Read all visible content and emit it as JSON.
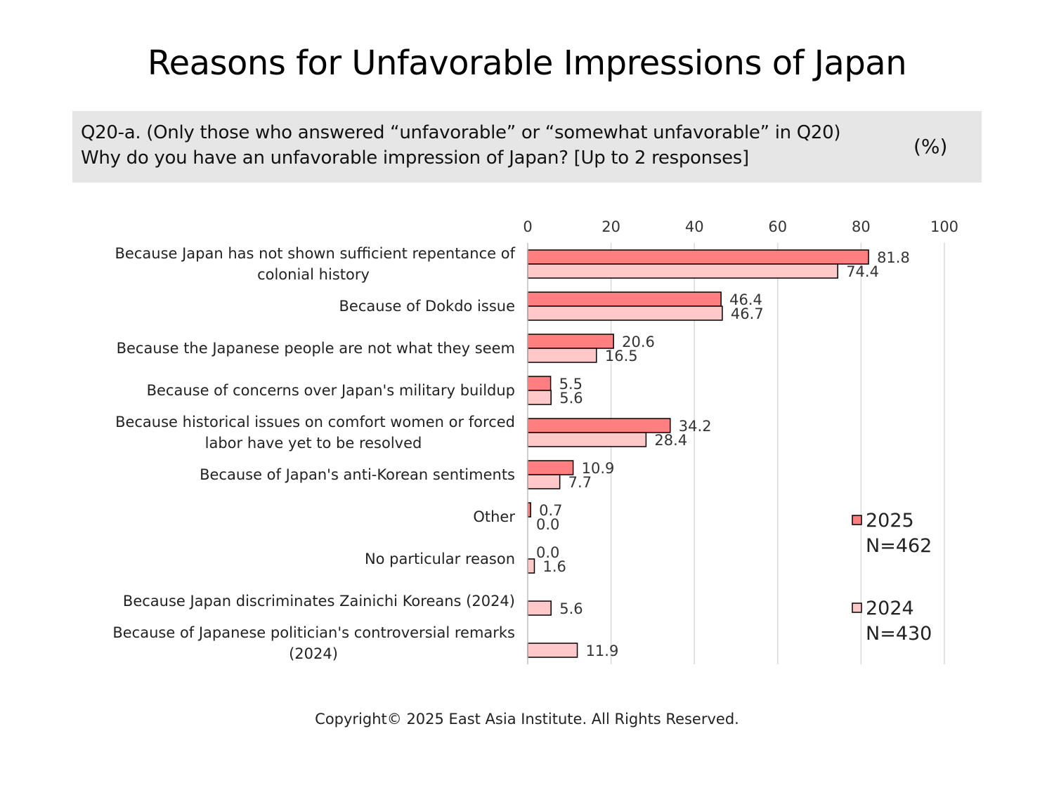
{
  "title": "Reasons for Unfavorable Impressions of Japan",
  "question": {
    "line1": "Q20-a. (Only those who answered “unfavorable” or “somewhat unfavorable” in Q20)",
    "line2": "Why do you have an unfavorable impression of Japan? [Up to 2 responses]",
    "unit": "(%)"
  },
  "copyright": "Copyright© 2025 East Asia Institute. All Rights Reserved.",
  "colors": {
    "series_2025": "#ff7f80",
    "series_2024": "#ffc9ca",
    "bar_outline": "#000000",
    "grid": "#d9d9d9"
  },
  "chart_data": {
    "type": "bar",
    "orientation": "horizontal",
    "xlim": [
      0,
      100
    ],
    "x_ticks": [
      "0",
      "20",
      "40",
      "60",
      "80",
      "100"
    ],
    "x_axis_position": "top",
    "grid": true,
    "legend_position": "right",
    "categories": [
      [
        "Because Japan has not shown sufficient repentance of",
        "colonial history"
      ],
      [
        "Because of Dokdo issue"
      ],
      [
        "Because the Japanese people are not what they seem"
      ],
      [
        "Because of concerns over Japan's military buildup"
      ],
      [
        "Because historical issues on comfort women or forced",
        "labor have yet to be resolved"
      ],
      [
        "Because of Japan's anti-Korean sentiments"
      ],
      [
        "Other"
      ],
      [
        "No particular reason"
      ],
      [
        "Because Japan discriminates Zainichi Koreans (2024)"
      ],
      [
        "Because of Japanese politician's controversial remarks",
        "(2024)"
      ]
    ],
    "series": [
      {
        "name": "2025",
        "sample": "N=462",
        "values": [
          81.8,
          46.4,
          20.6,
          5.5,
          34.2,
          10.9,
          0.7,
          0.0,
          null,
          null
        ],
        "labels": [
          "81.8",
          "46.4",
          "20.6",
          "5.5",
          "34.2",
          "10.9",
          "0.7",
          "0.0",
          null,
          null
        ]
      },
      {
        "name": "2024",
        "sample": "N=430",
        "values": [
          74.4,
          46.7,
          16.5,
          5.6,
          28.4,
          7.7,
          0.0,
          1.6,
          5.6,
          11.9
        ],
        "labels": [
          "74.4",
          "46.7",
          "16.5",
          "5.6",
          "28.4",
          "7.7",
          "0.0",
          "1.6",
          "5.6",
          "11.9"
        ]
      }
    ]
  }
}
